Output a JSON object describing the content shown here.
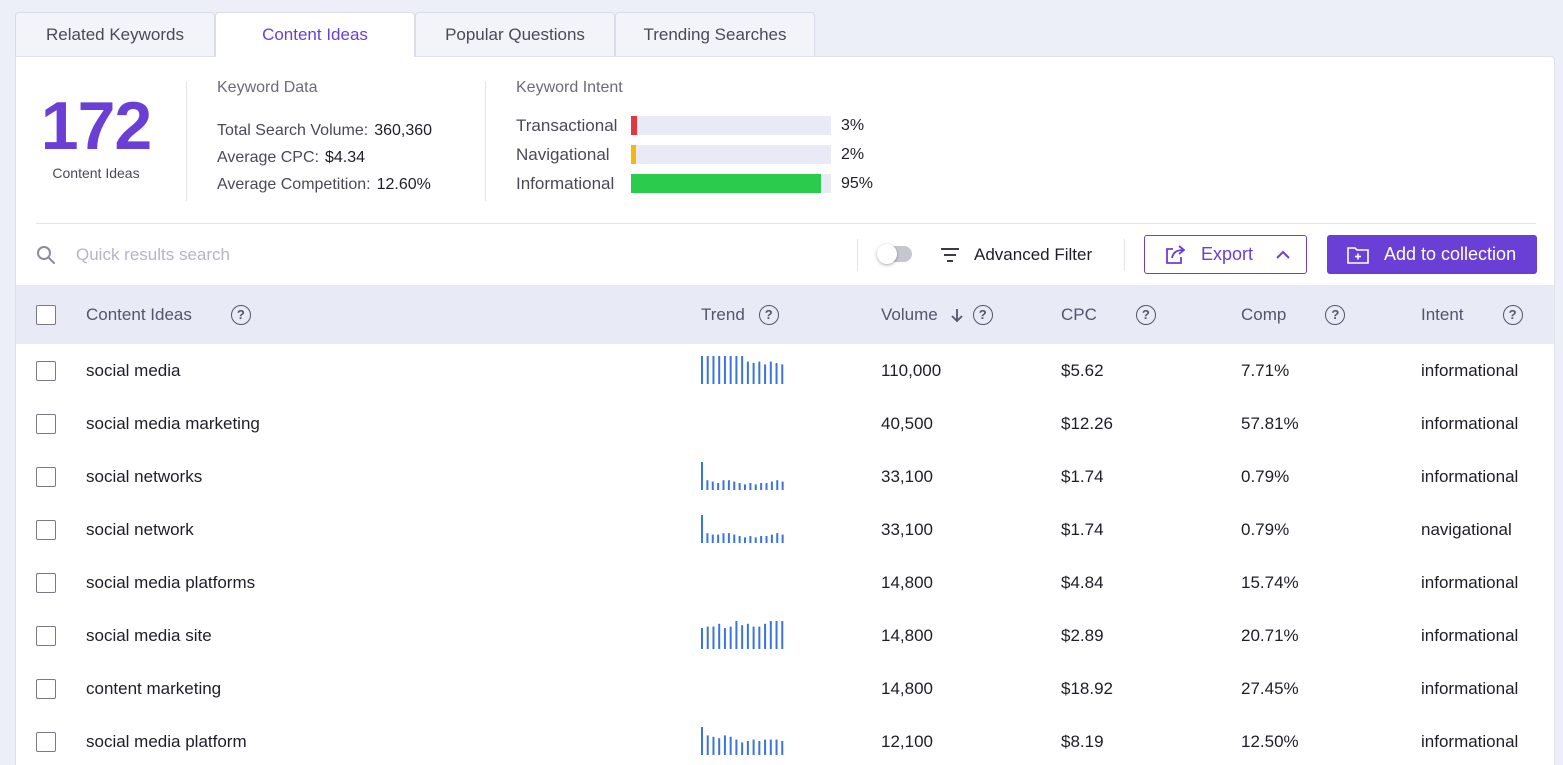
{
  "tabs": [
    {
      "label": "Related Keywords",
      "active": false
    },
    {
      "label": "Content Ideas",
      "active": true
    },
    {
      "label": "Popular Questions",
      "active": false
    },
    {
      "label": "Trending Searches",
      "active": false
    }
  ],
  "summary": {
    "count": "172",
    "count_caption": "Content Ideas",
    "keyword_data": {
      "title": "Keyword Data",
      "rows": [
        {
          "label": "Total Search Volume:",
          "value": "360,360"
        },
        {
          "label": "Average CPC:",
          "value": "$4.34"
        },
        {
          "label": "Average Competition:",
          "value": "12.60%"
        }
      ]
    },
    "keyword_intent": {
      "title": "Keyword Intent",
      "rows": [
        {
          "label": "Transactional",
          "value": "3%",
          "fraction": 0.03,
          "color": "#e0393e"
        },
        {
          "label": "Navigational",
          "value": "2%",
          "fraction": 0.02,
          "color": "#f5b60d"
        },
        {
          "label": "Informational",
          "value": "95%",
          "fraction": 0.95,
          "color": "#2bcc4e"
        }
      ]
    }
  },
  "toolbar": {
    "search_placeholder": "Quick results search",
    "search_value": "",
    "search_icon": "search-icon",
    "toggle_on": false,
    "advanced_filter_label": "Advanced Filter",
    "export_label": "Export",
    "add_collection_label": "Add to collection"
  },
  "table": {
    "columns": {
      "keyword": "Content Ideas",
      "trend": "Trend",
      "volume": "Volume",
      "cpc": "CPC",
      "comp": "Comp",
      "intent": "Intent"
    },
    "sort_column": "volume",
    "sort_direction": "desc",
    "trend_color": "#3b74e0",
    "rows": [
      {
        "keyword": "social media",
        "volume": "110,000",
        "cpc": "$5.62",
        "comp": "7.71%",
        "intent": "informational",
        "trend": [
          1.0,
          1.0,
          1.0,
          1.0,
          1.0,
          1.0,
          1.0,
          1.0,
          0.8,
          0.75,
          0.8,
          0.7,
          0.8,
          0.75,
          0.7
        ]
      },
      {
        "keyword": "social media marketing",
        "volume": "40,500",
        "cpc": "$12.26",
        "comp": "57.81%",
        "intent": "informational",
        "trend": []
      },
      {
        "keyword": "social networks",
        "volume": "33,100",
        "cpc": "$1.74",
        "comp": "0.79%",
        "intent": "informational",
        "trend": [
          1.0,
          0.35,
          0.3,
          0.25,
          0.35,
          0.35,
          0.3,
          0.25,
          0.2,
          0.25,
          0.2,
          0.25,
          0.25,
          0.3,
          0.35,
          0.3
        ]
      },
      {
        "keyword": "social network",
        "volume": "33,100",
        "cpc": "$1.74",
        "comp": "0.79%",
        "intent": "navigational",
        "trend": [
          1.0,
          0.35,
          0.3,
          0.3,
          0.35,
          0.35,
          0.3,
          0.25,
          0.2,
          0.25,
          0.2,
          0.25,
          0.25,
          0.3,
          0.35,
          0.3
        ]
      },
      {
        "keyword": "social media platforms",
        "volume": "14,800",
        "cpc": "$4.84",
        "comp": "15.74%",
        "intent": "informational",
        "trend": []
      },
      {
        "keyword": "social media site",
        "volume": "14,800",
        "cpc": "$2.89",
        "comp": "20.71%",
        "intent": "informational",
        "trend": [
          0.75,
          0.8,
          0.8,
          0.9,
          0.75,
          0.8,
          1.0,
          0.85,
          0.9,
          0.8,
          0.8,
          0.9,
          1.0,
          1.0,
          1.0
        ]
      },
      {
        "keyword": "content marketing",
        "volume": "14,800",
        "cpc": "$18.92",
        "comp": "27.45%",
        "intent": "informational",
        "trend": []
      },
      {
        "keyword": "social media platform",
        "volume": "12,100",
        "cpc": "$8.19",
        "comp": "12.50%",
        "intent": "informational",
        "trend": [
          1.0,
          0.7,
          0.65,
          0.6,
          0.7,
          0.65,
          0.55,
          0.45,
          0.5,
          0.55,
          0.5,
          0.55,
          0.55,
          0.55,
          0.5
        ]
      }
    ]
  }
}
